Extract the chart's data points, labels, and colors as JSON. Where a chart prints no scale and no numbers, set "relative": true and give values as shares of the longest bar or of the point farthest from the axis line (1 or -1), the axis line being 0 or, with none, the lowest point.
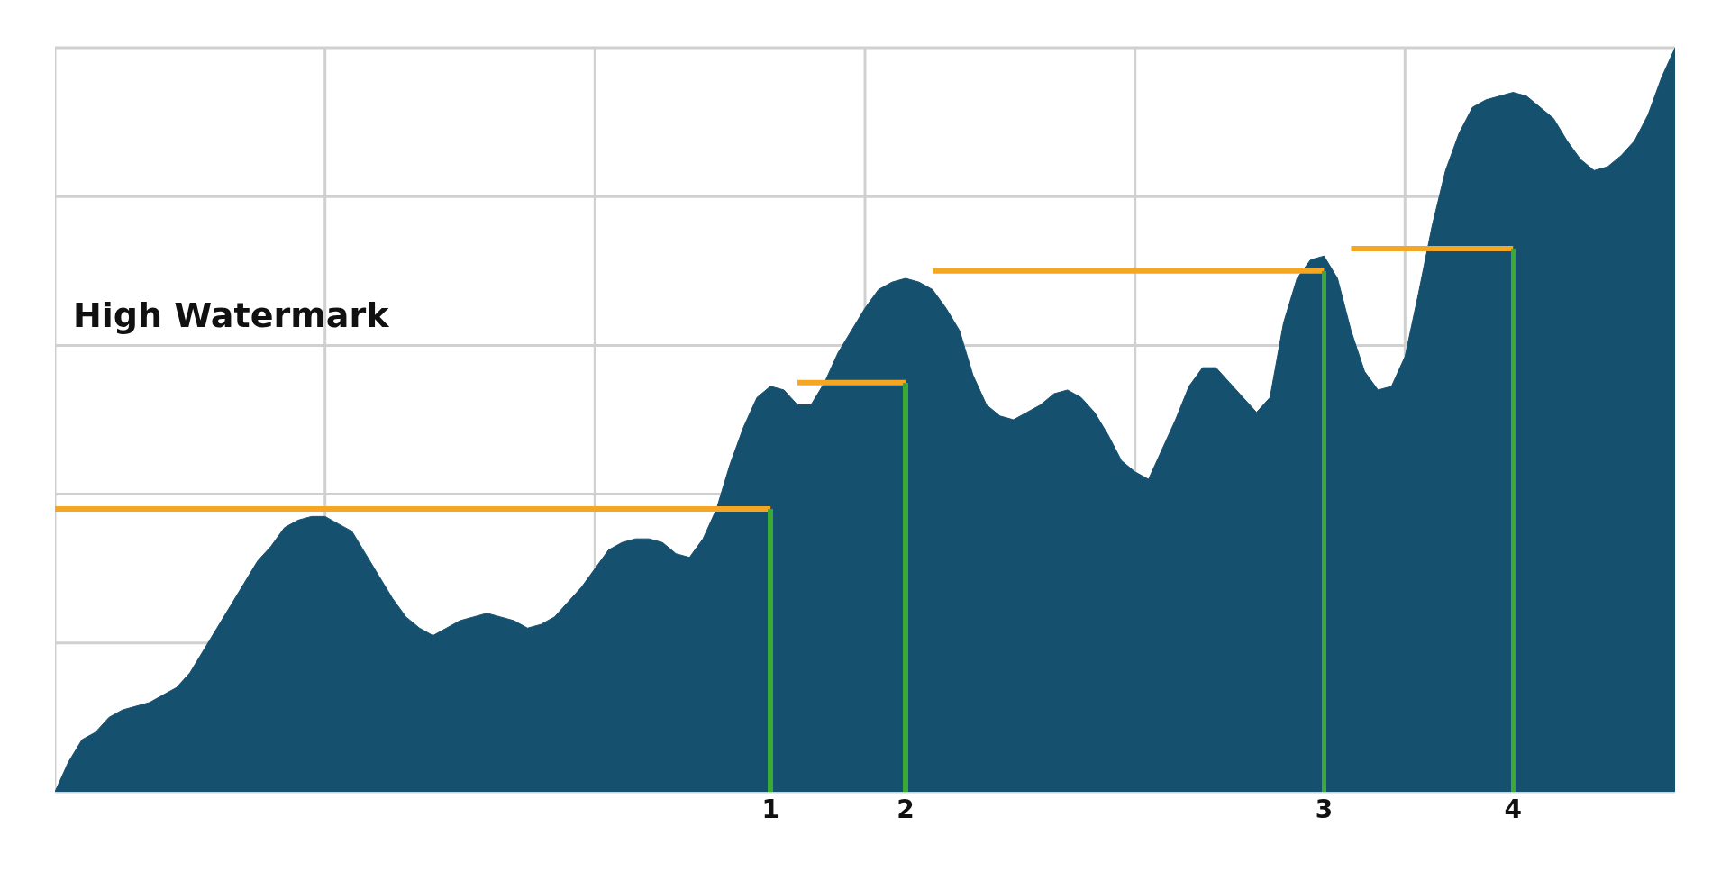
{
  "chart_data": {
    "type": "area",
    "relative": true,
    "grid": true,
    "marker": "none",
    "line_style": "solid",
    "categories": [
      null,
      null,
      null,
      null,
      null,
      null,
      null,
      null,
      null,
      null,
      null,
      null,
      null,
      null,
      null,
      null,
      null,
      null,
      null,
      null,
      null,
      null,
      null,
      null,
      null,
      null,
      null,
      null,
      null,
      null,
      null,
      null,
      null,
      null,
      null,
      null,
      null,
      null,
      null,
      null,
      null,
      null,
      null,
      null,
      null,
      null,
      null,
      null,
      null,
      null,
      null,
      null,
      null,
      "1",
      null,
      null,
      null,
      null,
      null,
      null,
      null,
      null,
      null,
      "2",
      null,
      null,
      null,
      null,
      null,
      null,
      null,
      null,
      null,
      null,
      null,
      null,
      null,
      null,
      null,
      null,
      null,
      null,
      null,
      null,
      null,
      null,
      null,
      null,
      null,
      null,
      null,
      null,
      null,
      null,
      "3",
      null,
      null,
      null,
      null,
      null,
      null,
      null,
      null,
      null,
      null,
      null,
      null,
      null,
      "4",
      null,
      null,
      null,
      null,
      null,
      null,
      null,
      null,
      null,
      null,
      null,
      null
    ],
    "series": [
      {
        "color": "#16506f",
        "values": [
          0,
          0.04,
          0.07,
          0.08,
          0.1,
          0.11,
          0.115,
          0.12,
          0.13,
          0.14,
          0.16,
          0.19,
          0.22,
          0.25,
          0.28,
          0.31,
          0.33,
          0.355,
          0.365,
          0.37,
          0.37,
          0.36,
          0.35,
          0.32,
          0.29,
          0.26,
          0.235,
          0.22,
          0.21,
          0.22,
          0.23,
          0.235,
          0.24,
          0.235,
          0.23,
          0.22,
          0.225,
          0.235,
          0.255,
          0.275,
          0.3,
          0.325,
          0.335,
          0.34,
          0.34,
          0.335,
          0.32,
          0.315,
          0.34,
          0.38,
          0.44,
          0.49,
          0.53,
          0.545,
          0.54,
          0.52,
          0.52,
          0.55,
          0.59,
          0.62,
          0.65,
          0.675,
          0.685,
          0.69,
          0.685,
          0.675,
          0.65,
          0.62,
          0.56,
          0.52,
          0.505,
          0.5,
          0.51,
          0.52,
          0.535,
          0.54,
          0.53,
          0.51,
          0.48,
          0.445,
          0.43,
          0.42,
          0.46,
          0.5,
          0.545,
          0.57,
          0.57,
          0.55,
          0.53,
          0.51,
          0.53,
          0.63,
          0.69,
          0.715,
          0.72,
          0.69,
          0.62,
          0.565,
          0.54,
          0.545,
          0.585,
          0.67,
          0.76,
          0.835,
          0.885,
          0.92,
          0.93,
          0.935,
          0.94,
          0.935,
          0.92,
          0.905,
          0.875,
          0.85,
          0.835,
          0.84,
          0.855,
          0.875,
          0.91,
          0.96,
          1.0
        ]
      },
      {
        "type": "line",
        "color": "#f5a623",
        "values": [
          0.38,
          0.38,
          0.38,
          0.38,
          0.38,
          0.38,
          0.38,
          0.38,
          0.38,
          0.38,
          0.38,
          0.38,
          0.38,
          0.38,
          0.38,
          0.38,
          0.38,
          0.38,
          0.38,
          0.38,
          0.38,
          0.38,
          0.38,
          0.38,
          0.38,
          0.38,
          0.38,
          0.38,
          0.38,
          0.38,
          0.38,
          0.38,
          0.38,
          0.38,
          0.38,
          0.38,
          0.38,
          0.38,
          0.38,
          0.38,
          0.38,
          0.38,
          0.38,
          0.38,
          0.38,
          0.38,
          0.38,
          0.38,
          0.38,
          0.38,
          0.38,
          0.38,
          0.38,
          0.38,
          null,
          0.55,
          0.55,
          0.55,
          0.55,
          0.55,
          0.55,
          0.55,
          0.55,
          0.55,
          null,
          0.7,
          0.7,
          0.7,
          0.7,
          0.7,
          0.7,
          0.7,
          0.7,
          0.7,
          0.7,
          0.7,
          0.7,
          0.7,
          0.7,
          0.7,
          0.7,
          0.7,
          0.7,
          0.7,
          0.7,
          0.7,
          0.7,
          0.7,
          0.7,
          0.7,
          0.7,
          0.7,
          0.7,
          0.7,
          0.7,
          null,
          0.73,
          0.73,
          0.73,
          0.73,
          0.73,
          0.73,
          0.73,
          0.73,
          0.73,
          0.73,
          0.73,
          0.73,
          0.73,
          null,
          null,
          null,
          null,
          null,
          null,
          null,
          null,
          null,
          null,
          null,
          null
        ]
      },
      {
        "type": "bar",
        "color": "#3aaa35",
        "values": [
          null,
          null,
          null,
          null,
          null,
          null,
          null,
          null,
          null,
          null,
          null,
          null,
          null,
          null,
          null,
          null,
          null,
          null,
          null,
          null,
          null,
          null,
          null,
          null,
          null,
          null,
          null,
          null,
          null,
          null,
          null,
          null,
          null,
          null,
          null,
          null,
          null,
          null,
          null,
          null,
          null,
          null,
          null,
          null,
          null,
          null,
          null,
          null,
          null,
          null,
          null,
          null,
          null,
          0.38,
          null,
          null,
          null,
          null,
          null,
          null,
          null,
          null,
          null,
          0.55,
          null,
          null,
          null,
          null,
          null,
          null,
          null,
          null,
          null,
          null,
          null,
          null,
          null,
          null,
          null,
          null,
          null,
          null,
          null,
          null,
          null,
          null,
          null,
          null,
          null,
          null,
          null,
          null,
          null,
          null,
          0.7,
          null,
          null,
          null,
          null,
          null,
          null,
          null,
          null,
          null,
          null,
          null,
          null,
          null,
          0.73,
          null,
          null,
          null,
          null,
          null,
          null,
          null,
          null,
          null,
          null,
          null,
          null
        ]
      }
    ],
    "annotations": [
      "High Watermark"
    ]
  }
}
